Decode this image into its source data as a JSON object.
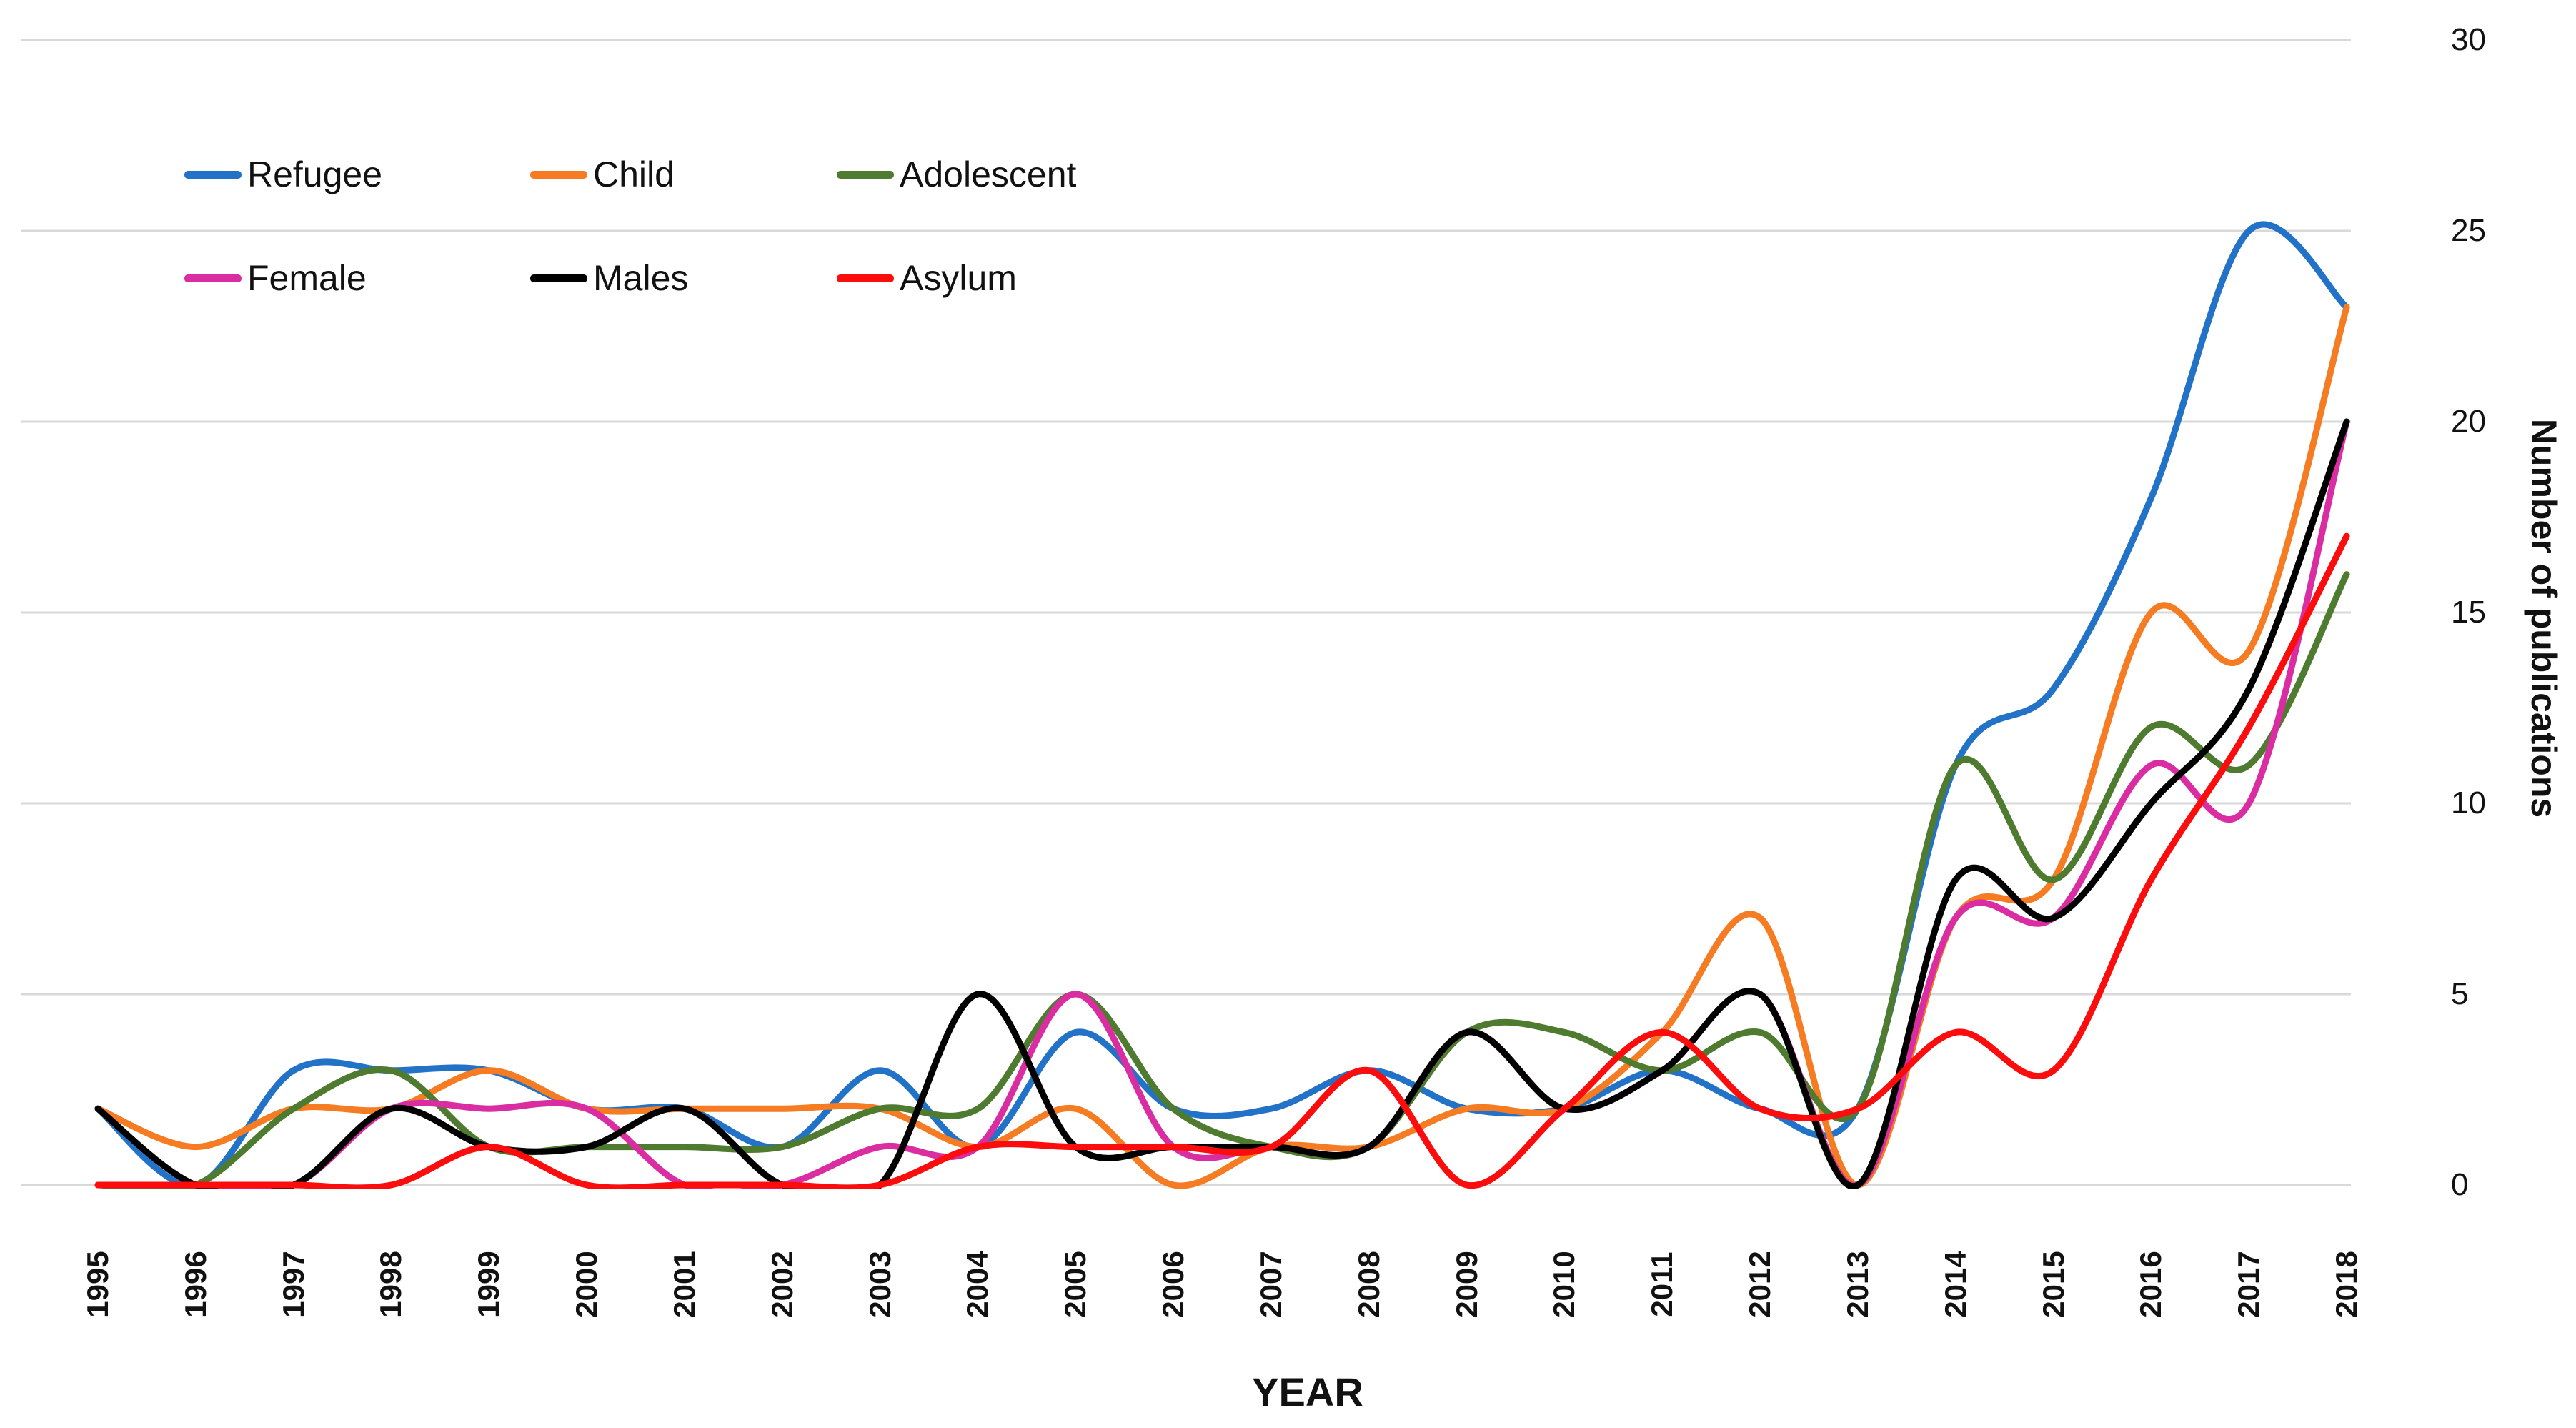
{
  "chart_data": {
    "type": "line",
    "title": "",
    "xlabel": "YEAR",
    "ylabel": "Number of publications",
    "ylim": [
      0,
      30
    ],
    "yticks": [
      0,
      5,
      10,
      15,
      20,
      25,
      30
    ],
    "grid": "horizontal",
    "legend_position": "top-left",
    "x": [
      1995,
      1996,
      1997,
      1998,
      1999,
      2000,
      2001,
      2002,
      2003,
      2004,
      2005,
      2006,
      2007,
      2008,
      2009,
      2010,
      2011,
      2012,
      2013,
      2014,
      2015,
      2016,
      2017,
      2018
    ],
    "series": [
      {
        "name": "Refugee",
        "color": "#2272C8",
        "values": [
          2,
          0,
          3,
          3,
          3,
          2,
          2,
          1,
          3,
          1,
          4,
          2,
          2,
          3,
          2,
          2,
          3,
          2,
          2,
          11,
          13,
          18,
          25,
          23
        ]
      },
      {
        "name": "Child",
        "color": "#F57C22",
        "values": [
          2,
          1,
          2,
          2,
          3,
          2,
          2,
          2,
          2,
          1,
          2,
          0,
          1,
          1,
          2,
          2,
          4,
          7,
          0,
          7,
          8,
          15,
          14,
          23
        ]
      },
      {
        "name": "Adolescent",
        "color": "#4E7B2F",
        "values": [
          0,
          0,
          2,
          3,
          1,
          1,
          1,
          1,
          2,
          2,
          5,
          2,
          1,
          1,
          4,
          4,
          3,
          4,
          2,
          11,
          8,
          12,
          11,
          16
        ]
      },
      {
        "name": "Female",
        "color": "#DA2DA2",
        "values": [
          0,
          0,
          0,
          2,
          2,
          2,
          0,
          0,
          1,
          1,
          5,
          1,
          1,
          1,
          4,
          2,
          3,
          5,
          0,
          7,
          7,
          11,
          10,
          20
        ]
      },
      {
        "name": "Males",
        "color": "#000000",
        "values": [
          2,
          0,
          0,
          2,
          1,
          1,
          2,
          0,
          0,
          5,
          1,
          1,
          1,
          1,
          4,
          2,
          3,
          5,
          0,
          8,
          7,
          10,
          13,
          20
        ]
      },
      {
        "name": "Asylum",
        "color": "#FB0D0D",
        "values": [
          0,
          0,
          0,
          0,
          1,
          0,
          0,
          0,
          0,
          1,
          1,
          1,
          1,
          3,
          0,
          2,
          4,
          2,
          2,
          4,
          3,
          8,
          12,
          17
        ]
      }
    ],
    "gridline_color": "#D9D9D9",
    "text_color": "#111111"
  },
  "legend_rows": [
    [
      "Refugee",
      "Child",
      "Adolescent"
    ],
    [
      "Female",
      "Males",
      "Asylum"
    ]
  ]
}
